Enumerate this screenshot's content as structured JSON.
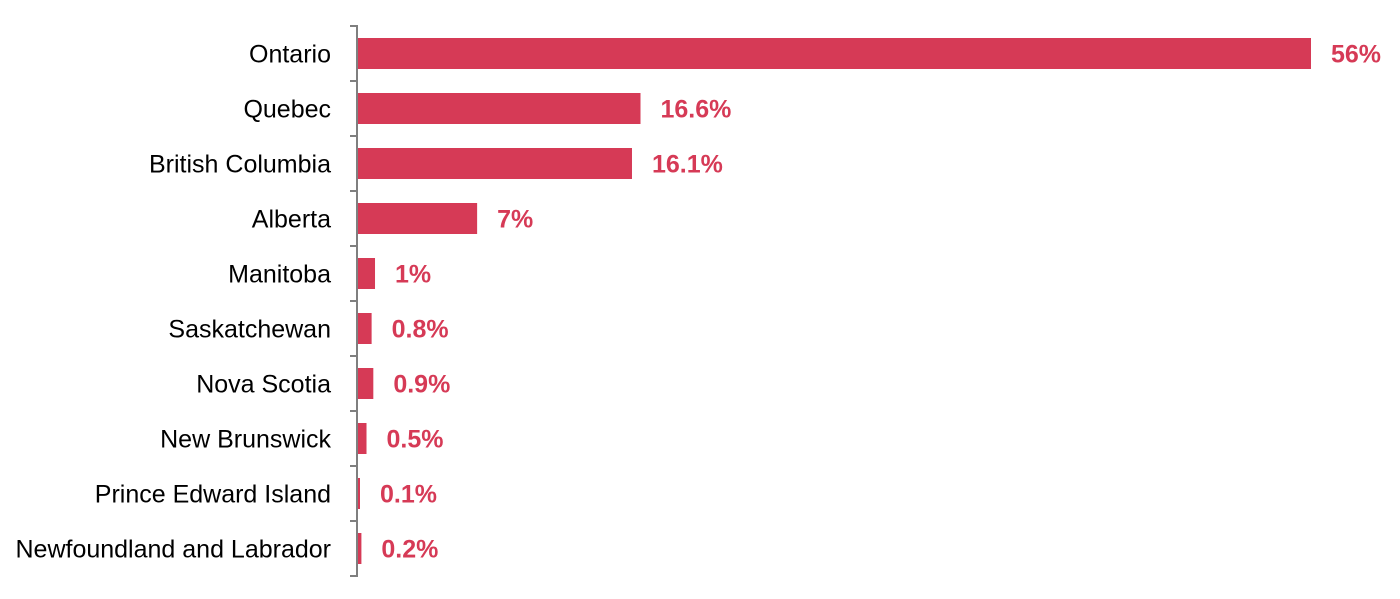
{
  "chart_data": {
    "type": "bar",
    "orientation": "horizontal",
    "categories": [
      "Ontario",
      "Quebec",
      "British Columbia",
      "Alberta",
      "Manitoba",
      "Saskatchewan",
      "Nova Scotia",
      "New Brunswick",
      "Prince Edward Island",
      "Newfoundland and Labrador"
    ],
    "values": [
      56,
      16.6,
      16.1,
      7,
      1,
      0.8,
      0.9,
      0.5,
      0.1,
      0.2
    ],
    "data_labels": [
      "56%",
      "16.6%",
      "16.1%",
      "7%",
      "1%",
      "0.8%",
      "0.9%",
      "0.5%",
      "0.1%",
      "0.2%"
    ],
    "unit": "%",
    "xlim": [
      0,
      56
    ],
    "grid": false,
    "legend": "none",
    "colors": {
      "bar": "#d63a56",
      "label": "#d63a56",
      "axis": "#7f7f7f"
    }
  }
}
